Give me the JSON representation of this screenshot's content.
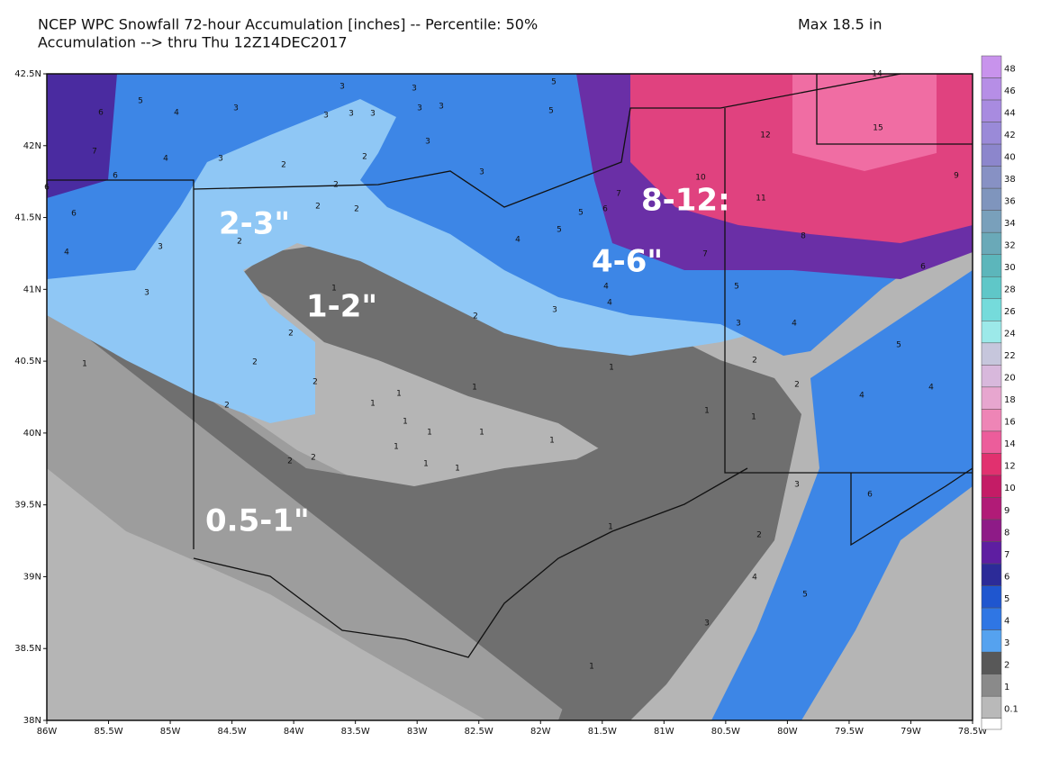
{
  "header": {
    "title": "NCEP WPC Snowfall 72-hour Accumulation [inches] -- Percentile: 50%",
    "subtitle": "Accumulation --> thru Thu 12Z14DEC2017",
    "max": "Max 18.5 in"
  },
  "lat_labels": [
    "42.5N",
    "42N",
    "41.5N",
    "41N",
    "40.5N",
    "40N",
    "39.5N",
    "39N",
    "38.5N",
    "38N"
  ],
  "lon_labels": [
    "86W",
    "85.5W",
    "85W",
    "84.5W",
    "84W",
    "83.5W",
    "83W",
    "82.5W",
    "82W",
    "81.5W",
    "81W",
    "80.5W",
    "80W",
    "79.5W",
    "79W",
    "78.5W"
  ],
  "colorbar_labels": [
    "48",
    "46",
    "44",
    "42",
    "40",
    "38",
    "36",
    "34",
    "32",
    "30",
    "28",
    "26",
    "24",
    "22",
    "20",
    "18",
    "16",
    "14",
    "12",
    "10",
    "9",
    "8",
    "7",
    "6",
    "5",
    "4",
    "3",
    "2",
    "1",
    "0.1"
  ],
  "annotations": [
    "2-3\"",
    "1-2\"",
    "4-6\"",
    "8-12:",
    "0.5-1\""
  ],
  "contour_labels": [
    6,
    5,
    4,
    3,
    3,
    3,
    3,
    3,
    3,
    3,
    3,
    3,
    3,
    5,
    5,
    7,
    6,
    4,
    3,
    2,
    2,
    2,
    2,
    2,
    6,
    6,
    4,
    3,
    3,
    2,
    4,
    5,
    5,
    6,
    7,
    14,
    15,
    12,
    10,
    11,
    8,
    9,
    6,
    7,
    4,
    4,
    3,
    5,
    3,
    4,
    1,
    2,
    2,
    2,
    2,
    2,
    1,
    2,
    5,
    2,
    4,
    4,
    1,
    1,
    1,
    1,
    1,
    1,
    1,
    1,
    1,
    1,
    1,
    1,
    1,
    2,
    2,
    3,
    6,
    1,
    2,
    4,
    5,
    3,
    1
  ]
}
